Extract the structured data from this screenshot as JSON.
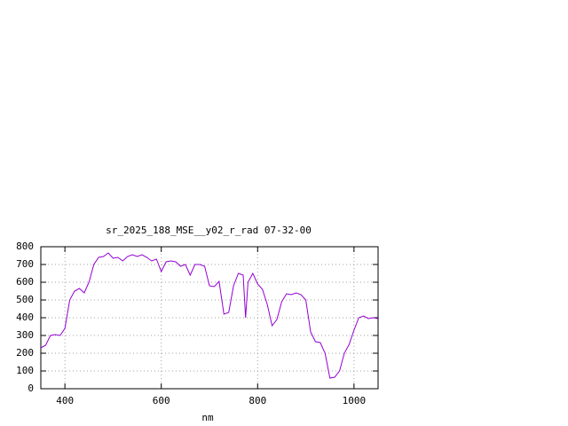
{
  "chart_data": {
    "type": "line",
    "title": "sr_2025_188_MSE__y02_r_rad 07-32-00",
    "x_label": "nm",
    "x": [
      350,
      360,
      370,
      380,
      390,
      400,
      410,
      420,
      430,
      440,
      450,
      460,
      470,
      480,
      490,
      500,
      510,
      520,
      530,
      540,
      550,
      560,
      570,
      580,
      590,
      600,
      610,
      620,
      630,
      640,
      650,
      660,
      670,
      680,
      690,
      700,
      710,
      720,
      730,
      740,
      750,
      760,
      770,
      775,
      780,
      790,
      800,
      810,
      820,
      830,
      840,
      850,
      860,
      870,
      880,
      890,
      900,
      910,
      920,
      930,
      940,
      950,
      960,
      970,
      980,
      990,
      1000,
      1010,
      1020,
      1030,
      1040,
      1050
    ],
    "series": [
      {
        "color": "#9400d3",
        "values": [
          230,
          245,
          300,
          305,
          300,
          340,
          500,
          550,
          565,
          540,
          600,
          700,
          740,
          745,
          765,
          735,
          740,
          720,
          745,
          755,
          745,
          755,
          740,
          720,
          730,
          660,
          715,
          720,
          715,
          690,
          700,
          640,
          700,
          700,
          690,
          580,
          575,
          605,
          420,
          430,
          580,
          650,
          640,
          400,
          600,
          650,
          590,
          560,
          475,
          355,
          390,
          490,
          535,
          530,
          540,
          530,
          500,
          320,
          265,
          260,
          200,
          60,
          65,
          100,
          200,
          250,
          330,
          400,
          410,
          395,
          400,
          395
        ]
      }
    ],
    "xlim": [
      350,
      1050
    ],
    "xticks": [
      400,
      600,
      800,
      1000
    ],
    "ylim": [
      0,
      800
    ],
    "yticks": [
      0,
      100,
      200,
      300,
      400,
      500,
      600,
      700,
      800
    ],
    "grid": true
  }
}
